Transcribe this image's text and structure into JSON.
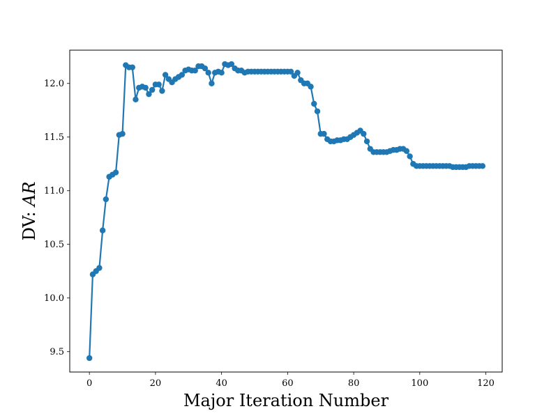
{
  "chart_data": {
    "type": "line",
    "title": "",
    "xlabel": "Major Iteration Number",
    "ylabel": {
      "prefix": "DV: ",
      "math": "AR"
    },
    "xlim": [
      -5.95,
      124.95
    ],
    "ylim": [
      9.31,
      12.31
    ],
    "xticks": [
      0,
      20,
      40,
      60,
      80,
      100,
      120
    ],
    "xtick_labels": [
      "0",
      "20",
      "40",
      "60",
      "80",
      "100",
      "120"
    ],
    "yticks": [
      9.5,
      10.0,
      10.5,
      11.0,
      11.5,
      12.0
    ],
    "ytick_labels": [
      "9.5",
      "10.0",
      "10.5",
      "11.0",
      "11.5",
      "12.0"
    ],
    "grid": false,
    "legend": "none",
    "series": [
      {
        "color": "#1f77b4",
        "marker": "circle",
        "x": [
          0,
          1,
          2,
          3,
          4,
          5,
          6,
          7,
          8,
          9,
          10,
          11,
          12,
          13,
          14,
          15,
          16,
          17,
          18,
          19,
          20,
          21,
          22,
          23,
          24,
          25,
          26,
          27,
          28,
          29,
          30,
          31,
          32,
          33,
          34,
          35,
          36,
          37,
          38,
          39,
          40,
          41,
          42,
          43,
          44,
          45,
          46,
          47,
          48,
          49,
          50,
          51,
          52,
          53,
          54,
          55,
          56,
          57,
          58,
          59,
          60,
          61,
          62,
          63,
          64,
          65,
          66,
          67,
          68,
          69,
          70,
          71,
          72,
          73,
          74,
          75,
          76,
          77,
          78,
          79,
          80,
          81,
          82,
          83,
          84,
          85,
          86,
          87,
          88,
          89,
          90,
          91,
          92,
          93,
          94,
          95,
          96,
          97,
          98,
          99,
          100,
          101,
          102,
          103,
          104,
          105,
          106,
          107,
          108,
          109,
          110,
          111,
          112,
          113,
          114,
          115,
          116,
          117,
          118,
          119
        ],
        "y": [
          9.44,
          10.22,
          10.25,
          10.28,
          10.63,
          10.92,
          11.13,
          11.15,
          11.17,
          11.52,
          11.53,
          12.17,
          12.15,
          12.15,
          11.85,
          11.96,
          11.97,
          11.96,
          11.9,
          11.94,
          11.99,
          11.99,
          11.93,
          12.08,
          12.04,
          12.01,
          12.04,
          12.06,
          12.08,
          12.12,
          12.13,
          12.12,
          12.12,
          12.16,
          12.16,
          12.14,
          12.1,
          12.0,
          12.1,
          12.11,
          12.1,
          12.18,
          12.17,
          12.18,
          12.14,
          12.12,
          12.12,
          12.1,
          12.11,
          12.11,
          12.11,
          12.11,
          12.11,
          12.11,
          12.11,
          12.11,
          12.11,
          12.11,
          12.11,
          12.11,
          12.11,
          12.11,
          12.07,
          12.1,
          12.03,
          12.0,
          12.0,
          11.97,
          11.81,
          11.74,
          11.53,
          11.53,
          11.48,
          11.46,
          11.46,
          11.47,
          11.47,
          11.48,
          11.48,
          11.5,
          11.52,
          11.54,
          11.56,
          11.53,
          11.46,
          11.39,
          11.36,
          11.36,
          11.36,
          11.36,
          11.36,
          11.37,
          11.38,
          11.38,
          11.39,
          11.39,
          11.37,
          11.32,
          11.25,
          11.23,
          11.23,
          11.23,
          11.23,
          11.23,
          11.23,
          11.23,
          11.23,
          11.23,
          11.23,
          11.23,
          11.22,
          11.22,
          11.22,
          11.22,
          11.22,
          11.23,
          11.23,
          11.23,
          11.23,
          11.23
        ]
      }
    ]
  }
}
